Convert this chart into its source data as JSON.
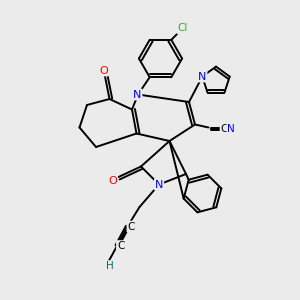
{
  "bg_color": "#ebebeb",
  "atom_colors": {
    "N": "#0000ff",
    "O": "#ff0000",
    "Cl": "#33aa33",
    "C": "#000000",
    "H": "#007070"
  },
  "bond_color": "#000000",
  "bond_width": 1.4,
  "figsize": [
    3.0,
    3.0
  ],
  "dpi": 100
}
